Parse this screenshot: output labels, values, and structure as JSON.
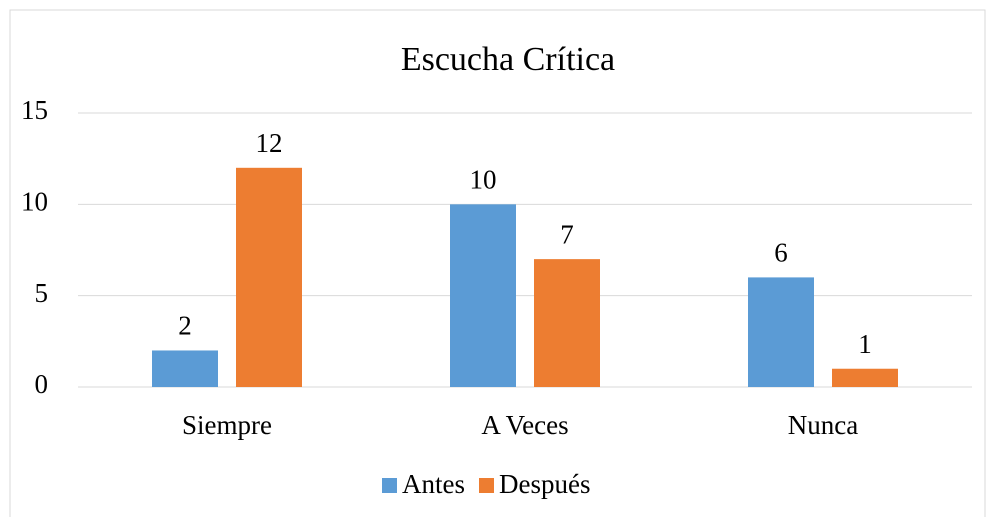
{
  "chart_data": {
    "type": "bar",
    "title": "Escucha Crítica",
    "categories": [
      "Siempre",
      "A Veces",
      "Nunca"
    ],
    "series": [
      {
        "name": "Antes",
        "color": "#5b9bd5",
        "values": [
          2,
          10,
          6
        ]
      },
      {
        "name": "Después",
        "color": "#ed7d31",
        "values": [
          12,
          7,
          1
        ]
      }
    ],
    "ylim": [
      0,
      15
    ],
    "yticks": [
      0,
      5,
      10,
      15
    ],
    "grid": true,
    "legend": "bottom"
  }
}
